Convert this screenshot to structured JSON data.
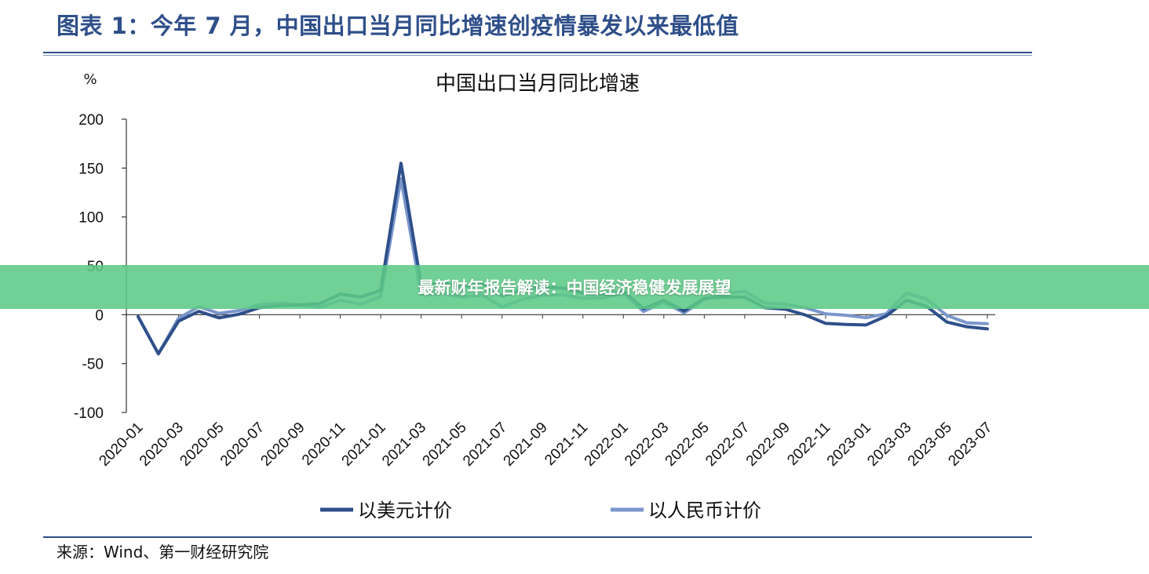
{
  "figure": {
    "heading": "图表 1：今年 7 月，中国出口当月同比增速创疫情暴发以来最低值",
    "source": "来源：Wind、第一财经研究院"
  },
  "banner": {
    "text": "最新财年报告解读：中国经济稳健发展展望"
  },
  "colors": {
    "accent": "#2f4f8a",
    "banner": "#5cc986"
  },
  "chart_data": {
    "type": "line",
    "title": "中国出口当月同比增速",
    "unit_label": "%",
    "ylim": [
      -100,
      200
    ],
    "yticks": [
      200,
      150,
      100,
      50,
      0,
      -50,
      -100
    ],
    "grid": false,
    "legend_position": "bottom",
    "x": [
      "2020-01",
      "2020-02",
      "2020-03",
      "2020-04",
      "2020-05",
      "2020-06",
      "2020-07",
      "2020-08",
      "2020-09",
      "2020-10",
      "2020-11",
      "2020-12",
      "2021-01",
      "2021-02",
      "2021-03",
      "2021-04",
      "2021-05",
      "2021-06",
      "2021-07",
      "2021-08",
      "2021-09",
      "2021-10",
      "2021-11",
      "2021-12",
      "2022-01",
      "2022-02",
      "2022-03",
      "2022-04",
      "2022-05",
      "2022-06",
      "2022-07",
      "2022-08",
      "2022-09",
      "2022-10",
      "2022-11",
      "2022-12",
      "2023-01",
      "2023-02",
      "2023-03",
      "2023-04",
      "2023-05",
      "2023-06",
      "2023-07"
    ],
    "xtick_labels": [
      "2020-01",
      "2020-03",
      "2020-05",
      "2020-07",
      "2020-09",
      "2020-11",
      "2021-01",
      "2021-03",
      "2021-05",
      "2021-07",
      "2021-09",
      "2021-11",
      "2022-01",
      "2022-03",
      "2022-05",
      "2022-07",
      "2022-09",
      "2022-11",
      "2023-01",
      "2023-03",
      "2023-05",
      "2023-07"
    ],
    "series": [
      {
        "name": "以美元计价",
        "color": "#2f4f8a",
        "values": [
          -2,
          -40,
          -6.6,
          3.5,
          -3.3,
          0.5,
          7.2,
          9.5,
          9.9,
          11.4,
          21.1,
          18.1,
          24.9,
          154.9,
          30.6,
          32.3,
          27.9,
          32.2,
          19.3,
          25.6,
          28.1,
          27.1,
          22,
          20.9,
          24.1,
          6.2,
          14.7,
          3.9,
          16.9,
          17.9,
          18,
          7.1,
          5.7,
          -0.3,
          -8.9,
          -9.9,
          -10.5,
          -1.3,
          14.8,
          8.5,
          -7.5,
          -12.4,
          -14.5
        ]
      },
      {
        "name": "以人民币计价",
        "color": "#7a96cc",
        "values": [
          -2,
          -40,
          -3.5,
          8.2,
          1.4,
          4.3,
          10.4,
          11.6,
          10.2,
          7.6,
          14.9,
          10.9,
          18.6,
          139,
          20.8,
          22.2,
          18.1,
          20.2,
          8.1,
          15.7,
          19.9,
          20.3,
          16.6,
          17.3,
          21.8,
          3.3,
          12.9,
          1.9,
          15.3,
          22,
          23.9,
          11.8,
          10.7,
          7,
          0.9,
          -0.5,
          -3.1,
          0.9,
          22.2,
          15.8,
          -0.8,
          -8.3,
          -9.2
        ]
      }
    ]
  }
}
